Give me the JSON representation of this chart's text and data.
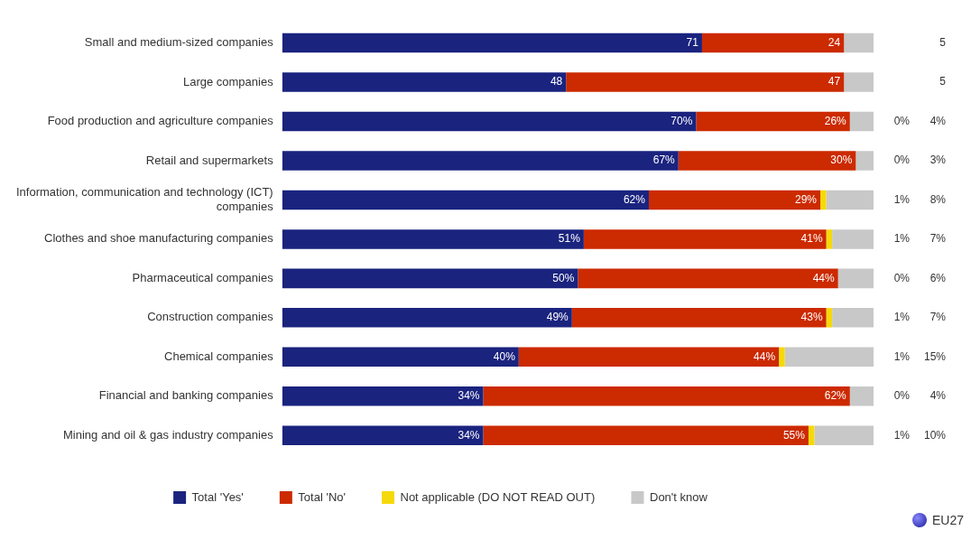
{
  "chart_data": {
    "type": "bar",
    "orientation": "horizontal",
    "stacked": true,
    "categories": [
      "Small and medium-sized companies",
      "Large companies",
      "Food production and agriculture companies",
      "Retail and supermarkets",
      "Information, communication and technology (ICT) companies",
      "Clothes and shoe manufacturing companies",
      "Pharmaceutical companies",
      "Construction companies",
      "Chemical companies",
      "Financial and banking companies",
      "Mining and oil & gas industry companies"
    ],
    "series": [
      {
        "name": "Total 'Yes'",
        "color": "#1a237e",
        "values": [
          71,
          48,
          70,
          67,
          62,
          51,
          50,
          49,
          40,
          34,
          34
        ],
        "value_labels": [
          "71",
          "48",
          "70%",
          "67%",
          "62%",
          "51%",
          "50%",
          "49%",
          "40%",
          "34%",
          "34%"
        ]
      },
      {
        "name": "Total 'No'",
        "color": "#cc2a00",
        "values": [
          24,
          47,
          26,
          30,
          29,
          41,
          44,
          43,
          44,
          62,
          55
        ],
        "value_labels": [
          "24",
          "47",
          "26%",
          "30%",
          "29%",
          "41%",
          "44%",
          "43%",
          "44%",
          "62%",
          "55%"
        ]
      },
      {
        "name": "Not applicable (DO NOT READ OUT)",
        "color": "#f5d90a",
        "values": [
          0,
          0,
          0,
          0,
          1,
          1,
          0,
          1,
          1,
          0,
          1
        ],
        "value_labels": [
          null,
          null,
          "0%",
          "0%",
          "1%",
          "1%",
          "0%",
          "1%",
          "1%",
          "0%",
          "1%"
        ]
      },
      {
        "name": "Don't know",
        "color": "#c8c8c8",
        "values": [
          5,
          5,
          4,
          3,
          8,
          7,
          6,
          7,
          15,
          4,
          10
        ],
        "value_labels": [
          "5",
          "5",
          "4%",
          "3%",
          "8%",
          "7%",
          "6%",
          "7%",
          "15%",
          "4%",
          "10%"
        ]
      }
    ],
    "xlim": [
      0,
      100
    ],
    "tick_labels": "y",
    "grid": false,
    "legend": "bottom",
    "annotations": [
      "EU27"
    ]
  }
}
